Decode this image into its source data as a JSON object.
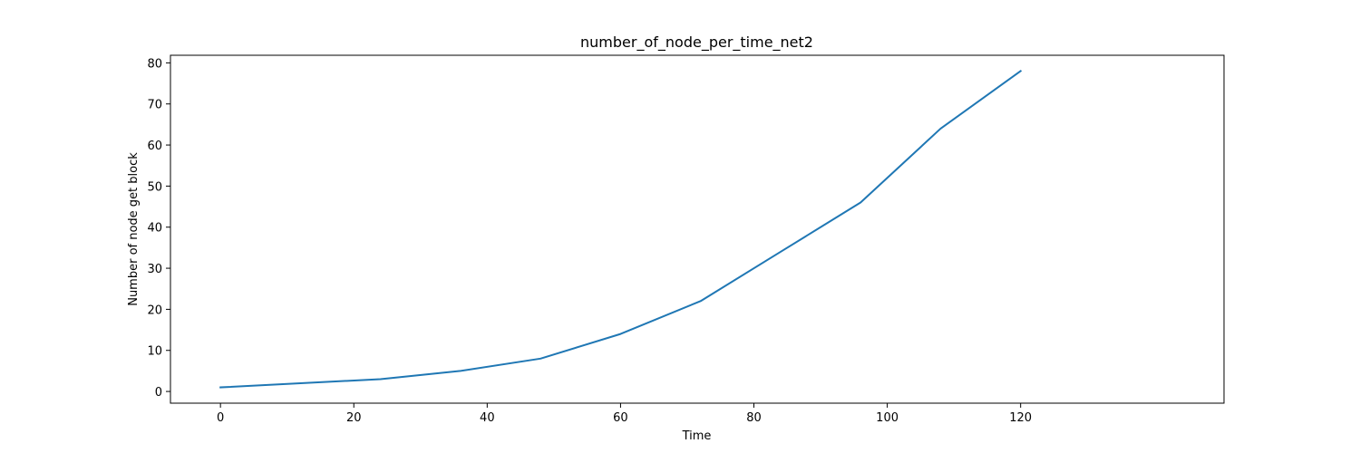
{
  "chart_data": {
    "type": "line",
    "title": "number_of_node_per_time_net2",
    "xlabel": "Time",
    "ylabel": "Number of node get block",
    "xlim": [
      -7.5,
      150.5
    ],
    "ylim": [
      -2.85,
      81.85
    ],
    "xticks": [
      0,
      20,
      40,
      60,
      80,
      100,
      120
    ],
    "yticks": [
      0,
      10,
      20,
      30,
      40,
      50,
      60,
      70,
      80
    ],
    "grid": false,
    "x": [
      0,
      12,
      24,
      36,
      48,
      60,
      72,
      84,
      96,
      108,
      120
    ],
    "series": [
      {
        "values": [
          1,
          2,
          3,
          5,
          8,
          14,
          22,
          34,
          46,
          64,
          78
        ],
        "color": "#1f77b4"
      }
    ]
  }
}
